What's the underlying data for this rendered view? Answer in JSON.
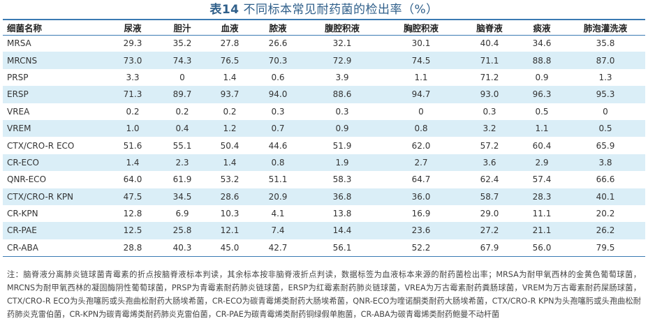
{
  "title": {
    "number": "表14",
    "text": "不同标本常见耐药菌的检出率（%）"
  },
  "table": {
    "headers": [
      "细菌名称",
      "尿液",
      "胆汁",
      "血液",
      "脓液",
      "腹腔积液",
      "胸腔积液",
      "脑脊液",
      "痰液",
      "肺泡灌洗液"
    ],
    "rows": [
      [
        "MRSA",
        "29.3",
        "35.2",
        "27.8",
        "26.6",
        "32.1",
        "30.1",
        "40.4",
        "34.6",
        "35.8"
      ],
      [
        "MRCNS",
        "73.0",
        "74.3",
        "76.5",
        "70.3",
        "72.9",
        "74.5",
        "71.1",
        "88.8",
        "87.0"
      ],
      [
        "PRSP",
        "3.3",
        "0",
        "1.4",
        "0.6",
        "3.9",
        "1.1",
        "71.2",
        "0.9",
        "1.3"
      ],
      [
        "ERSP",
        "71.3",
        "89.7",
        "93.7",
        "94.0",
        "88.6",
        "94.7",
        "93.0",
        "96.3",
        "95.3"
      ],
      [
        "VREA",
        "0.2",
        "0.2",
        "0.2",
        "0.3",
        "0.3",
        "0",
        "0.3",
        "0.5",
        "0"
      ],
      [
        "VREM",
        "1.0",
        "0.4",
        "1.2",
        "0.7",
        "0.9",
        "0.8",
        "3.2",
        "1.1",
        "0.5"
      ],
      [
        "CTX/CRO-R ECO",
        "51.6",
        "55.1",
        "50.4",
        "44.6",
        "51.9",
        "62.0",
        "57.2",
        "60.4",
        "65.9"
      ],
      [
        "CR-ECO",
        "1.4",
        "2.3",
        "1.4",
        "0.8",
        "1.9",
        "2.7",
        "3.6",
        "2.9",
        "3.8"
      ],
      [
        "QNR-ECO",
        "64.0",
        "61.9",
        "53.2",
        "51.1",
        "58.3",
        "64.7",
        "62.4",
        "57.4",
        "66.6"
      ],
      [
        "CTX/CRO-R KPN",
        "47.5",
        "34.5",
        "28.6",
        "20.9",
        "36.8",
        "36.0",
        "58.7",
        "28.3",
        "40.1"
      ],
      [
        "CR-KPN",
        "12.8",
        "6.9",
        "10.3",
        "4.1",
        "13.8",
        "16.9",
        "29.0",
        "11.1",
        "20.2"
      ],
      [
        "CR-PAE",
        "12.5",
        "25.8",
        "12.1",
        "7.4",
        "14.4",
        "23.6",
        "27.2",
        "21.1",
        "26.2"
      ],
      [
        "CR-ABA",
        "28.8",
        "40.3",
        "45.0",
        "42.7",
        "56.1",
        "52.2",
        "67.9",
        "56.0",
        "79.5"
      ]
    ]
  },
  "note": "注：脑脊液分离肺炎链球菌青霉素的折点按脑脊液标本判读，其余标本按非脑脊液折点判读，数据标签为血液标本来源的耐药菌检出率；MRSA为耐甲氧西林的金黄色葡萄球菌，MRCNS为耐甲氧西林的凝固酶阴性葡萄球菌，PRSP为青霉素耐药肺炎链球菌，ERSP为红霉素耐药肺炎链球菌，VREA为万古霉素耐药粪肠球菌，VREM为万古霉素耐药屎肠球菌，CTX/CRO-R ECO为头孢噻肟或头孢曲松耐药大肠埃希菌，CR-ECO为碳青霉烯类耐药大肠埃希菌，QNR-ECO为喹诺酮类耐药大肠埃希菌，CTX/CRO-R KPN为头孢噻肟或头孢曲松耐药肺炎克雷伯菌，CR-KPN为碳青霉烯类耐药肺炎克雷伯菌，CR-PAE为碳青霉烯类耐药铜绿假单胞菌，CR-ABA为碳青霉烯类耐药鲍曼不动杆菌"
}
